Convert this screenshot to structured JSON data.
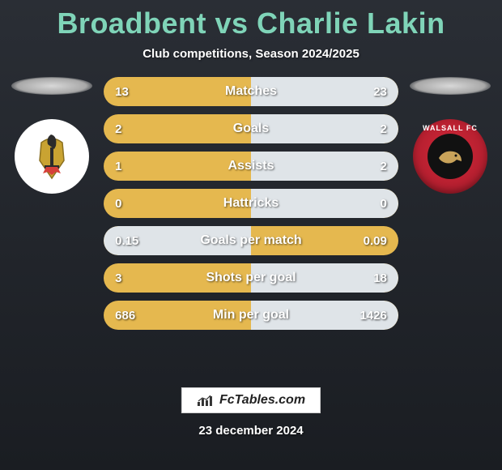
{
  "title": "Broadbent vs Charlie Lakin",
  "subtitle": "Club competitions, Season 2024/2025",
  "colors": {
    "accent": "#7fd4b8",
    "bar_bg": "#e5b84f",
    "bar_fill": "#dfe4e8",
    "text_white": "#ffffff",
    "bg_top": "#2a2e35",
    "bg_bottom": "#1a1d22"
  },
  "left_club": {
    "name": "Doncaster Rovers",
    "crest_bg": "#ffffff"
  },
  "right_club": {
    "name": "Walsall FC",
    "crest_bg": "#d62839",
    "crest_label": "WALSALL FC"
  },
  "stats": [
    {
      "label": "Matches",
      "p1": "13",
      "p2": "23",
      "left_fill_pct": 0,
      "right_fill_pct": 50
    },
    {
      "label": "Goals",
      "p1": "2",
      "p2": "2",
      "left_fill_pct": 0,
      "right_fill_pct": 50
    },
    {
      "label": "Assists",
      "p1": "1",
      "p2": "2",
      "left_fill_pct": 0,
      "right_fill_pct": 50
    },
    {
      "label": "Hattricks",
      "p1": "0",
      "p2": "0",
      "left_fill_pct": 0,
      "right_fill_pct": 50
    },
    {
      "label": "Goals per match",
      "p1": "0.15",
      "p2": "0.09",
      "left_fill_pct": 50,
      "right_fill_pct": 0
    },
    {
      "label": "Shots per goal",
      "p1": "3",
      "p2": "18",
      "left_fill_pct": 0,
      "right_fill_pct": 50
    },
    {
      "label": "Min per goal",
      "p1": "686",
      "p2": "1426",
      "left_fill_pct": 0,
      "right_fill_pct": 50
    }
  ],
  "footer": {
    "brand": "FcTables.com",
    "date": "23 december 2024"
  }
}
